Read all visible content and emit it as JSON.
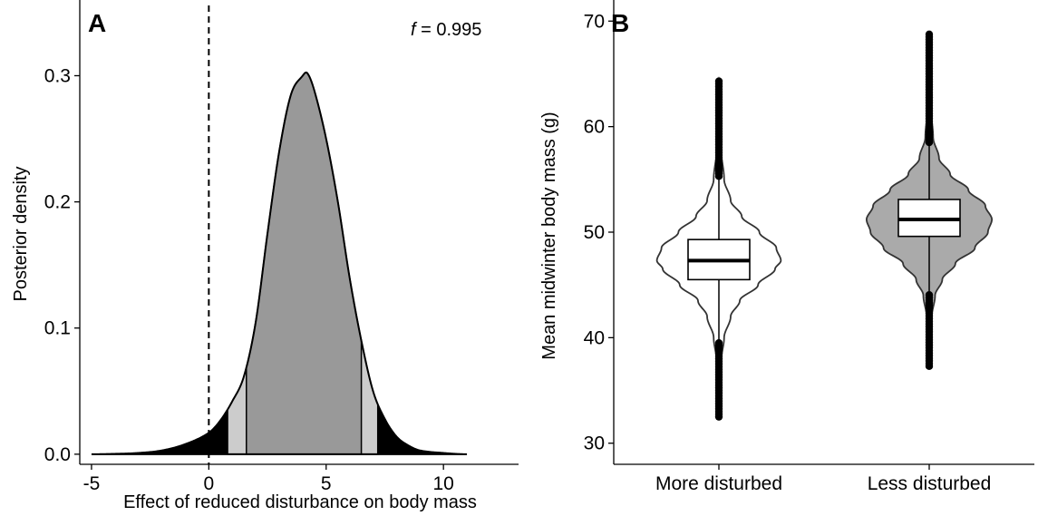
{
  "chart_data": [
    {
      "type": "area",
      "panel_label": "A",
      "xlabel": "Effect of reduced disturbance on body mass",
      "ylabel": "Posterior density",
      "annotation": {
        "symbol": "f",
        "text": " = 0.995"
      },
      "xlim": [
        -5.5,
        13.2
      ],
      "ylim": [
        -0.008,
        0.36
      ],
      "xticks": [
        -5,
        0,
        5,
        10
      ],
      "yticks": [
        0.0,
        0.1,
        0.2,
        0.3
      ],
      "ytick_labels": [
        "0.0",
        "0.1",
        "0.2",
        "0.3"
      ],
      "reference_line_x": 0,
      "grid": false,
      "credible_intervals": {
        "inner": [
          1.6,
          6.5
        ],
        "middle": [
          0.8,
          7.2
        ]
      },
      "fill_colors": {
        "inner": "#999999",
        "middle": "#cccccc",
        "outer": "#000000"
      },
      "density": {
        "x": [
          -5,
          -4,
          -3,
          -2,
          -1,
          0,
          0.5,
          1,
          1.5,
          2,
          2.5,
          3,
          3.5,
          4,
          4.2,
          4.5,
          5,
          5.5,
          6,
          6.5,
          7,
          7.5,
          8,
          8.5,
          9,
          10,
          11
        ],
        "y": [
          0,
          0.0003,
          0.001,
          0.003,
          0.008,
          0.017,
          0.027,
          0.042,
          0.062,
          0.105,
          0.175,
          0.24,
          0.285,
          0.3,
          0.302,
          0.288,
          0.25,
          0.2,
          0.14,
          0.09,
          0.05,
          0.028,
          0.014,
          0.007,
          0.003,
          0.001,
          0
        ]
      }
    },
    {
      "type": "violin",
      "panel_label": "B",
      "xlabel": "",
      "ylabel": "Mean midwinter body mass (g)",
      "ylim": [
        28,
        72
      ],
      "yticks": [
        30,
        40,
        50,
        60,
        70
      ],
      "categories": [
        "More disturbed",
        "Less disturbed"
      ],
      "grid": false,
      "groups": [
        {
          "name": "More disturbed",
          "fill": "#ffffff",
          "median": 47.3,
          "q1": 45.5,
          "q3": 49.3,
          "whisker_low": 39.8,
          "whisker_high": 55.0,
          "min": 32.5,
          "max": 64.5,
          "density_profile": {
            "y": [
              32.5,
              38,
              40,
              42,
              43.5,
              45,
              46.5,
              47.3,
              48.5,
              50,
              51.5,
              53,
              55,
              58,
              64.5
            ],
            "half_width": [
              0.005,
              0.04,
              0.08,
              0.18,
              0.32,
              0.6,
              0.86,
              0.95,
              0.88,
              0.62,
              0.35,
              0.18,
              0.08,
              0.03,
              0.005
            ]
          }
        },
        {
          "name": "Less disturbed",
          "fill": "#aaaaaa",
          "median": 51.2,
          "q1": 49.6,
          "q3": 53.1,
          "whisker_low": 44.4,
          "whisker_high": 58.2,
          "min": 37.3,
          "max": 68.8,
          "density_profile": {
            "y": [
              37.3,
              42,
              44,
              45.5,
              47,
              48.5,
              50,
              51.2,
              52.5,
              54,
              55.5,
              57,
              59,
              62,
              68.8
            ],
            "half_width": [
              0.005,
              0.04,
              0.09,
              0.2,
              0.4,
              0.7,
              0.9,
              0.96,
              0.86,
              0.6,
              0.32,
              0.15,
              0.06,
              0.02,
              0.005
            ]
          }
        }
      ]
    }
  ]
}
